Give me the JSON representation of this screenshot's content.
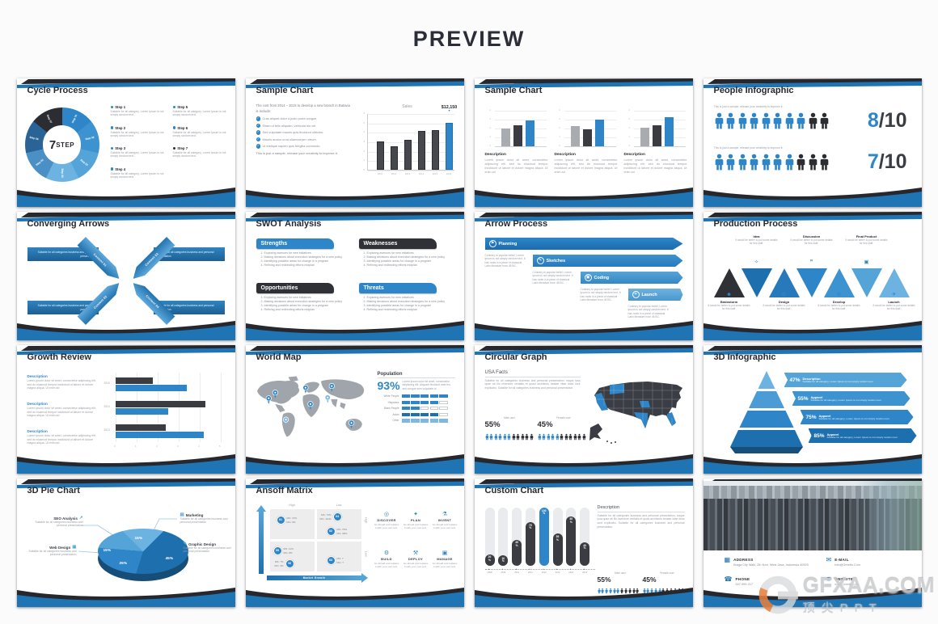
{
  "header": {
    "title": "PREVIEW"
  },
  "watermark": {
    "brand": "GFXAA.COM",
    "caption": "顶尖PPT"
  },
  "colors": {
    "blue": "#2e86c8",
    "dark_blue": "#1d6fae",
    "light_blue": "#6db3e2",
    "dark": "#26282e"
  },
  "slides": {
    "cycle": {
      "title": "Cycle Process",
      "center_big": "7",
      "center_small": "STEP",
      "ring_labels": [
        "Step 01",
        "Step 02",
        "Step 03",
        "Step 04",
        "Step 05",
        "Step 06",
        "Step 07"
      ],
      "steps": [
        {
          "label": "Step 1",
          "desc": "Suitable for all category, Lorem Ipsum is not simply random text."
        },
        {
          "label": "Step 2",
          "desc": "Suitable for all category, Lorem Ipsum is not simply random text."
        },
        {
          "label": "Step 3",
          "desc": "Suitable for all category, Lorem Ipsum is not simply random text."
        },
        {
          "label": "Step 4",
          "desc": "Suitable for all category, Lorem Ipsum is not simply random text."
        },
        {
          "label": "Step 5",
          "desc": "Suitable for all category, Lorem Ipsum is not simply random text."
        },
        {
          "label": "Step 6",
          "desc": "Suitable for all category, Lorem Ipsum is not simply random text."
        },
        {
          "label": "Step 7",
          "desc": "Suitable for all category, Lorem Ipsum is not simply random text."
        }
      ]
    },
    "sales": {
      "title": "Sample Chart",
      "intro": "The cost from 2014 – 2015 to develop a new branch in Batavia is include:",
      "bullets": [
        "Cras aliquet dolor a justo porta congue.",
        "Etiam ut felis aliquam, vehicula leo vel.",
        "Sed vulputate mauris quis tincidunt ultricies.",
        "Mauris auctor urna ullamcorper rutrum.",
        "Ut tristique sapien quis fringilla commodo."
      ],
      "footer": "This is just a sample, release your creativity to improve it."
    },
    "triple": {
      "title": "Sample Chart",
      "desc_title": "Description",
      "desc": "Lorem ipsum dolor sit amet, consectetur adipiscing elit, sed do eiusmod tempor incididunt ut labore et dolore magna aliqua. Ut enim ad"
    },
    "people": {
      "title": "People Infographic",
      "caption": "This is just a sample, release your creativity to improve it."
    },
    "converging": {
      "title": "Converging Arrows",
      "bar_text": "Suitable for all categories business and personal presentation",
      "arrows": [
        {
          "label": "Content 01"
        },
        {
          "label": "Content 03"
        },
        {
          "label": "Content 02"
        },
        {
          "label": "Content 04"
        }
      ]
    },
    "swot": {
      "title": "SWOT Analysis",
      "quadrants": [
        {
          "label": "Strengths"
        },
        {
          "label": "Weaknesses"
        },
        {
          "label": "Opportunities"
        },
        {
          "label": "Threats"
        }
      ],
      "items": [
        "Exploring avenues for new initiatives",
        "Making decisions about execution strategies for a new policy",
        "Identifying possible areas for change in a program",
        "Refining and redirecting efforts midplan"
      ]
    },
    "arrow_process": {
      "title": "Arrow Process",
      "desc": "Contrary to popular belief, Lorem Ipsum is not simply random text. It has roots in a piece of classical Latin literature from 45 BC.",
      "steps": [
        {
          "label": "Planning"
        },
        {
          "label": "Sketches"
        },
        {
          "label": "Coding"
        },
        {
          "label": "Launch"
        }
      ]
    },
    "production": {
      "title": "Production Process",
      "desc": "It would be better to put some details for this stuff.",
      "top_steps": [
        {
          "label": "Idea"
        },
        {
          "label": "Discussion"
        },
        {
          "label": "Final Product"
        }
      ],
      "bottom_steps": [
        {
          "label": "Brainstorm"
        },
        {
          "label": "Design"
        },
        {
          "label": "Develop"
        },
        {
          "label": "Launch"
        }
      ]
    },
    "growth": {
      "title": "Growth Review",
      "desc_title": "Description",
      "desc": "Lorem ipsum dolor sit amet, consectetur adipiscing elit, sed do eiusmod tempor incididunt ut labore et dolore magna aliqua. Ut enim ad"
    },
    "world": {
      "title": "World Map",
      "stat_title": "Population",
      "stat_value": "93%",
      "desc": "Lorem ipsum dolor sit amet, consectetur adipiscing elit. Aliquam tincidunt ante leo, sed congue sem vulputate id."
    },
    "usa": {
      "title": "Circular Graph",
      "subtitle": "USA Facts",
      "desc": "Suitable for all categories business and personal presentation, eaque ipsa quae ab illo inventore veritatis et quasi architecto beatae vitae dicta sunt explicabo. Suitable for all categories business and personal presentation.",
      "male_pct": "55%",
      "male_label": "Male user",
      "female_pct": "45%",
      "female_label": "Female user"
    },
    "threed": {
      "title": "3D Infographic",
      "desc": "Suitable for all category, Lorem Ipsum is not simply random text.",
      "levels": [
        {
          "pct": "47%",
          "label": "Description"
        },
        {
          "pct": "55%",
          "label": "Apparel"
        },
        {
          "pct": "75%",
          "label": "Apparel"
        },
        {
          "pct": "85%",
          "label": "Apparel"
        }
      ]
    },
    "pie3d": {
      "title": "3D Pie Chart",
      "callouts": [
        {
          "label": "SEO Analysis",
          "desc": "Suitable for all categories business and personal presentation"
        },
        {
          "label": "Web Design",
          "desc": "Suitable for all categories business and personal presentation"
        },
        {
          "label": "Marketing",
          "desc": "Suitable for all categories business and personal presentation"
        },
        {
          "label": "Graphic Design",
          "desc": "Suitable for all categories business and personal presentation"
        }
      ]
    },
    "ansoff": {
      "title": "Ansoff Matrix",
      "v_axis": "Market Share",
      "h_axis": "Market Growth",
      "col_labels": [
        "High",
        "Low"
      ],
      "row_labels": [
        "High",
        "Low"
      ],
      "points": [
        {
          "n": "01",
          "ms": "MS: 72%",
          "mg": "MG: 9%"
        },
        {
          "n": "04",
          "ms": "MS: 73%",
          "mg": "MG: 111%"
        },
        {
          "n": "02",
          "ms": "MS: 75%",
          "mg": "MG: 98%"
        },
        {
          "n": "05",
          "ms": "MS: 11%",
          "mg": "MG: 8%"
        },
        {
          "n": "06",
          "ms": "MS: 7%",
          "mg": "MG: 3%"
        },
        {
          "n": "03",
          "ms": "MS: ?",
          "mg": "MG: ?"
        }
      ],
      "actions": [
        {
          "label": "DISCOVER"
        },
        {
          "label": "PLAN"
        },
        {
          "label": "INVENT"
        },
        {
          "label": "BUILD"
        },
        {
          "label": "DEPLOY"
        },
        {
          "label": "MANAGE"
        }
      ],
      "action_desc": "Go ahead and replace it with your own text."
    },
    "custom": {
      "title": "Custom Chart",
      "desc_title": "Description",
      "desc": "Suitable for all categories business and personal presentation, eaque ipsa quae ab illo inventore veritatis et quasi architecto beatae vitae dicta sunt explicabo. Suitable for all categories business and personal presentation.",
      "male_pct": "55%",
      "male_label": "Male user",
      "female_pct": "45%",
      "female_label": "Female user"
    },
    "contact": {
      "items": [
        {
          "label": "ADDRESS",
          "value": "Braga City Walk, 2th floor, West Java, Indonesia 40925"
        },
        {
          "label": "E-MAIL",
          "value": "Info@Greetio.Com"
        },
        {
          "label": "PHONE",
          "value": "547-999-217"
        },
        {
          "label": "WEBSITE",
          "value": "www.Greetio.com"
        }
      ]
    }
  },
  "chart_data": [
    {
      "id": "sales",
      "type": "bar",
      "title": "Sales",
      "categories": [
        "2011",
        "2012",
        "2013",
        "2014",
        "2015",
        "2016"
      ],
      "values": [
        3,
        2.5,
        3.2,
        4.1,
        4.2,
        5
      ],
      "ylim": [
        0,
        6
      ],
      "highlight_index": 5,
      "highlight_label": "$12,150"
    },
    {
      "id": "mini_groups",
      "type": "bar",
      "ylim": [
        0,
        4
      ],
      "colors": [
        "#a8abb0",
        "#3a3c42",
        "#2e86c8"
      ],
      "groups": [
        [
          2,
          2.4,
          2.9
        ],
        [
          2.3,
          1.9,
          3
        ],
        [
          2.1,
          2.4,
          3.3
        ]
      ]
    },
    {
      "id": "pictogram",
      "type": "pictogram",
      "rows": [
        {
          "filled": 8,
          "total": 10,
          "num": "8",
          "den": "/10"
        },
        {
          "filled": 7,
          "total": 10,
          "num": "7",
          "den": "/10"
        }
      ]
    },
    {
      "id": "growth",
      "type": "bar_h",
      "categories": [
        "2015",
        "2014",
        "2013"
      ],
      "series": [
        {
          "name": "dark",
          "color": "#3a3c42",
          "values": [
            1.8,
            4.3,
            2.4
          ]
        },
        {
          "name": "blue",
          "color": "#2e86c8",
          "values": [
            3.4,
            2.5,
            4.2
          ]
        }
      ],
      "xlim": [
        0,
        5
      ],
      "xticks": [
        0,
        1,
        2,
        3,
        4,
        5
      ]
    },
    {
      "id": "population",
      "type": "segmented_bar",
      "segments": 5,
      "rows": [
        {
          "label": "White People",
          "filled": 5,
          "color": "#2e86c8"
        },
        {
          "label": "Hispanics",
          "filled": 4,
          "color": "#2e86c8"
        },
        {
          "label": "Black People",
          "filled": 2,
          "color": "#2e86c8"
        },
        {
          "label": "Asian",
          "filled": 4,
          "color": "#1d6fae"
        },
        {
          "label": "Other",
          "filled": 5,
          "color": "#7fb9e0"
        }
      ]
    },
    {
      "id": "gender_split",
      "type": "pictogram",
      "rows": [
        {
          "label": "Male user",
          "pct": 55,
          "filled": 6,
          "total": 11
        },
        {
          "label": "Female user",
          "pct": 45,
          "filled": 5,
          "total": 11
        }
      ]
    },
    {
      "id": "pyramid",
      "type": "pyramid",
      "levels": [
        47,
        55,
        75,
        85
      ]
    },
    {
      "id": "pie",
      "type": "pie",
      "slices": [
        {
          "position": "top",
          "value": 15,
          "color": "#6db3e2"
        },
        {
          "position": "right",
          "value": 45,
          "color": "#1d6fae"
        },
        {
          "position": "bottom-left",
          "value": 25,
          "color": "#2e86c8"
        },
        {
          "position": "left",
          "value": 15,
          "color": "#55a4d8"
        }
      ]
    },
    {
      "id": "custom_chart",
      "type": "bar",
      "unit": "%",
      "categories": [
        "2008",
        "2009",
        "2010",
        "2011",
        "2012",
        "2013",
        "2014",
        "2015"
      ],
      "values": [
        20,
        10,
        45,
        75,
        100,
        55,
        85,
        40
      ],
      "ylim": [
        0,
        100
      ],
      "highlight_index": 4
    }
  ]
}
